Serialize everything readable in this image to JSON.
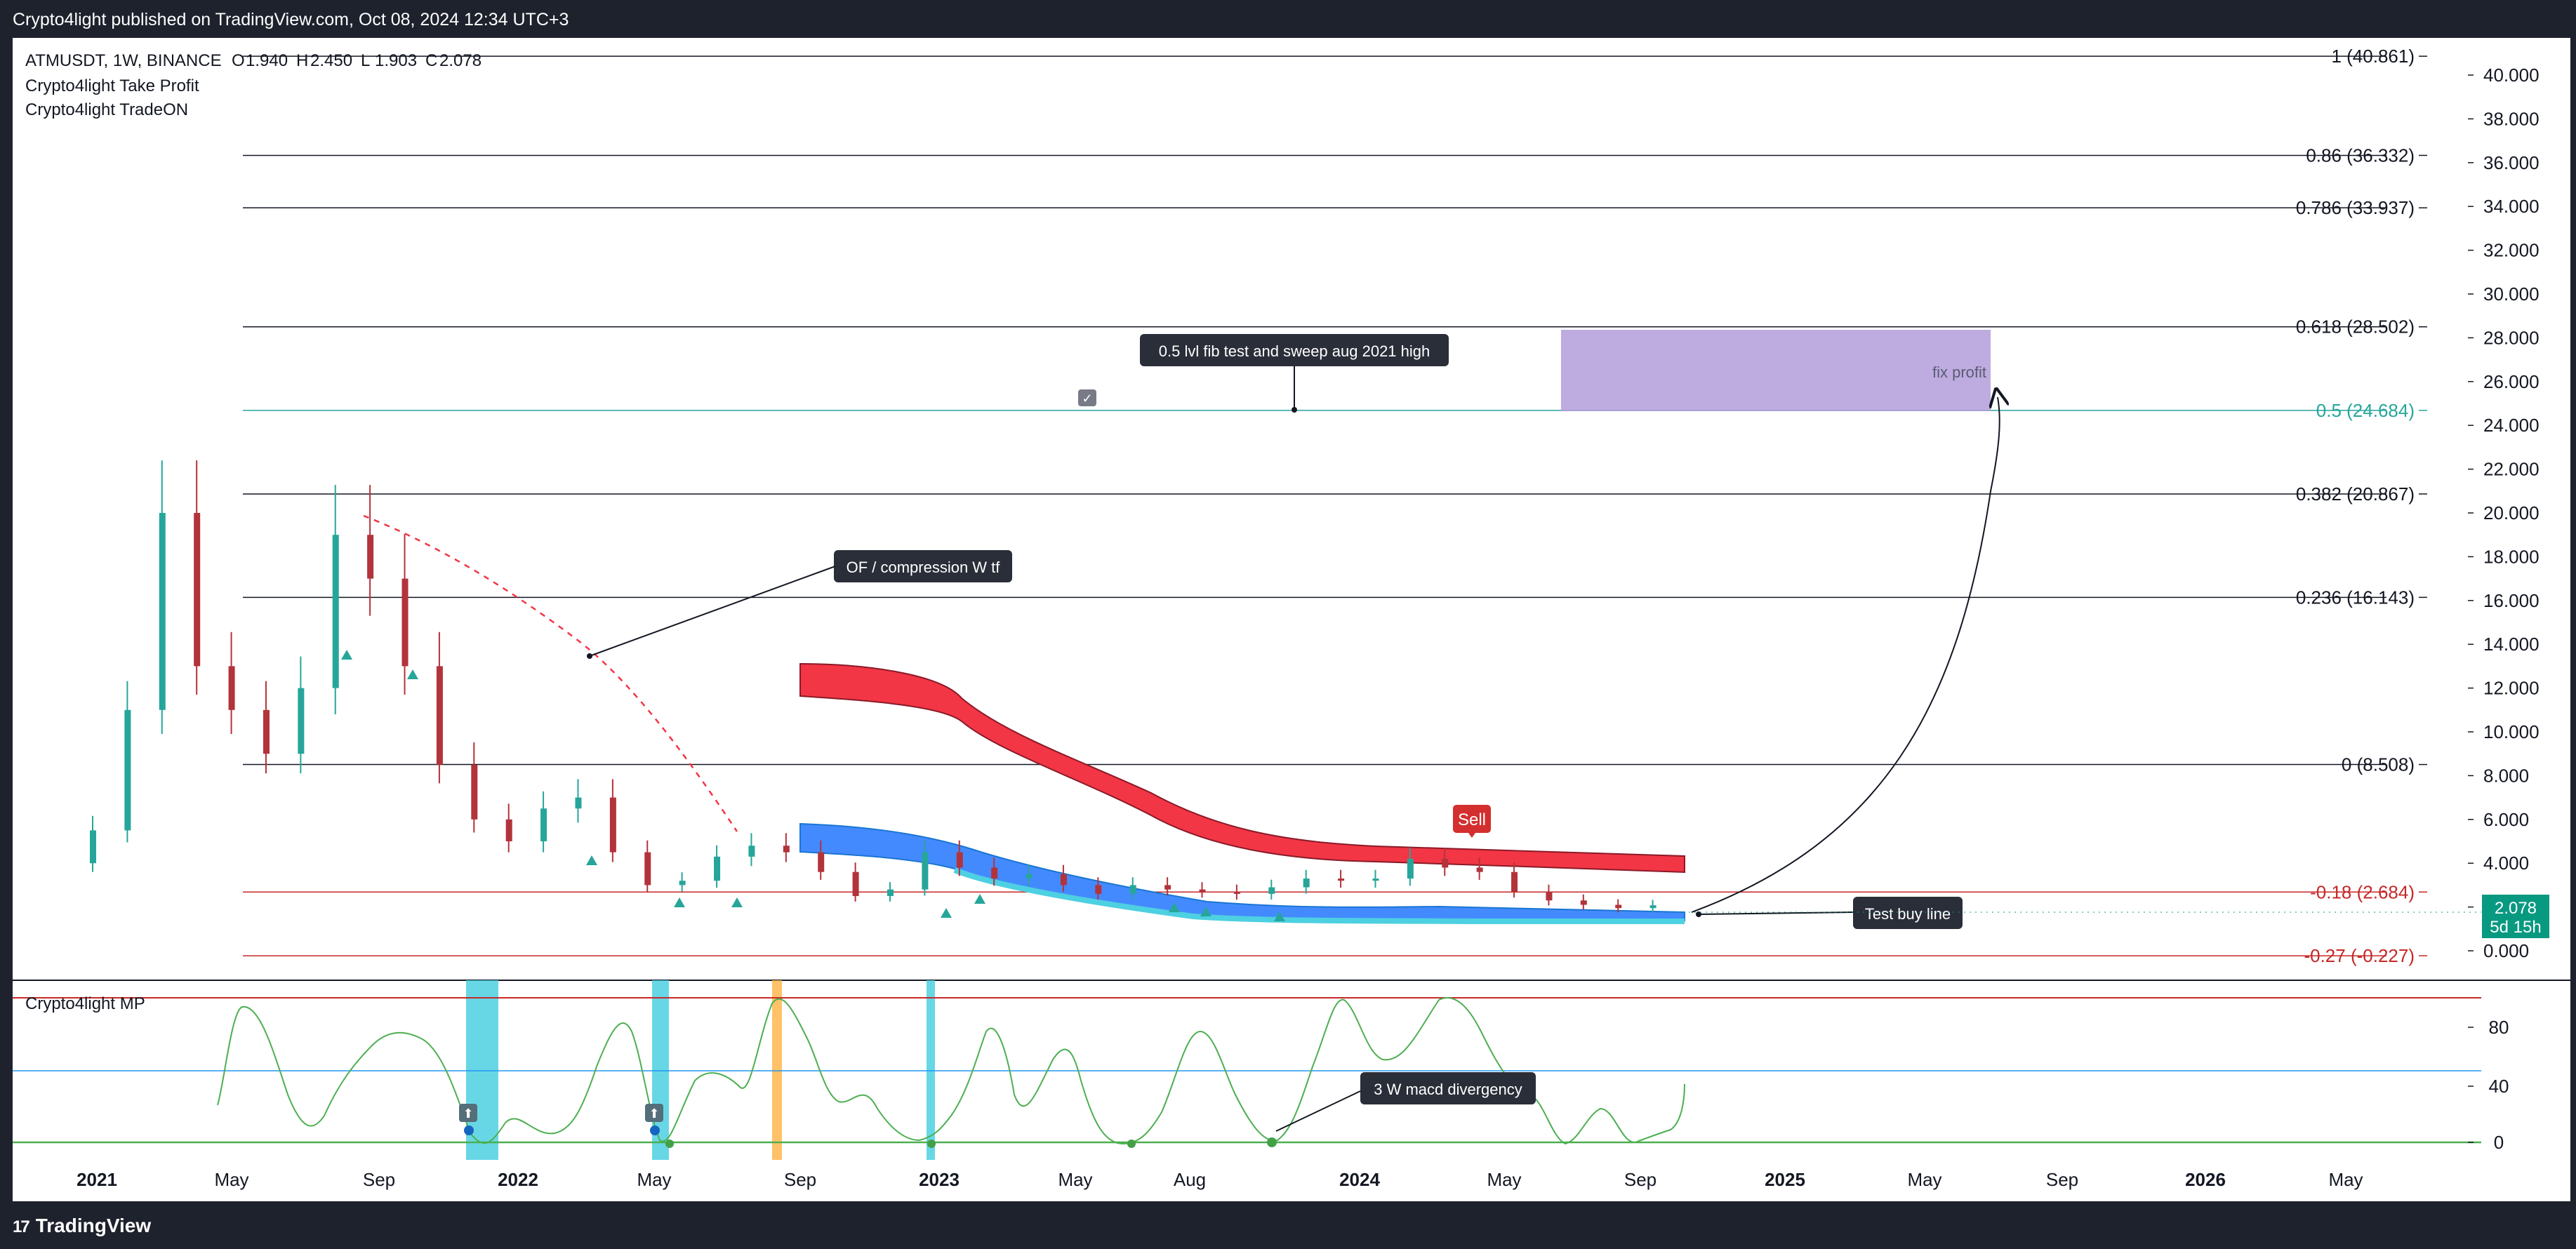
{
  "header": {
    "published": "Crypto4light published on TradingView.com, Oct 08, 2024 12:34 UTC+3"
  },
  "footer": {
    "brand": "TradingView",
    "brand_mark": "17"
  },
  "legend": {
    "symbol": "ATMUSDT, 1W, BINANCE",
    "ohlc": [
      {
        "label": "O",
        "value": "1.940"
      },
      {
        "label": "H",
        "value": "2.450"
      },
      {
        "label": "L",
        "value": "1.903"
      },
      {
        "label": "C",
        "value": "2.078"
      }
    ],
    "indicators": [
      "Crypto4light Take Profit",
      "Crypto4light TradeON"
    ]
  },
  "price_badge": {
    "price": "2.078",
    "countdown": "5d 15h",
    "color": "#089981"
  },
  "colors": {
    "bull": "#26a69a",
    "bear": "#b2333b",
    "fib_black": "#131722",
    "fib_green": "#26a69a",
    "fib_red": "#c62828",
    "sell_band": "#f23645",
    "buy_band": "#2962ff",
    "target_box": "#b39ddb",
    "oscillator": "#4caf50"
  },
  "annotations": {
    "fib_test": "0.5 lvl fib test and sweep aug 2021 high",
    "compression": "OF / compression W tf",
    "test_buy": "Test buy line",
    "fix_profit": "fix profit",
    "sell": "Sell",
    "divergency": "3 W macd divergency"
  },
  "oscillator": {
    "title": "Crypto4light MP",
    "ticks": [
      0,
      40,
      80
    ]
  },
  "chart_data": {
    "type": "candlestick",
    "symbol": "ATMUSDT",
    "timeframe": "1W",
    "exchange": "BINANCE",
    "ylim": [
      0,
      41.0
    ],
    "y_ticks": [
      "0.000",
      "2.000",
      "4.000",
      "6.000",
      "8.000",
      "10.000",
      "12.000",
      "14.000",
      "16.000",
      "18.000",
      "20.000",
      "22.000",
      "24.000",
      "26.000",
      "28.000",
      "30.000",
      "32.000",
      "34.000",
      "36.000",
      "38.000",
      "40.000"
    ],
    "x_ticks": [
      "2021",
      "May",
      "Sep",
      "2022",
      "May",
      "Sep",
      "2023",
      "May",
      "Aug",
      "2024",
      "May",
      "Sep",
      "2025",
      "May",
      "Sep",
      "2026",
      "May"
    ],
    "fib_levels": [
      {
        "label": "1 (40.861)",
        "value": 40.861
      },
      {
        "label": "0.86 (36.332)",
        "value": 36.332
      },
      {
        "label": "0.786 (33.937)",
        "value": 33.937
      },
      {
        "label": "0.618 (28.502)",
        "value": 28.502
      },
      {
        "label": "0.5 (24.684)",
        "value": 24.684
      },
      {
        "label": "0.382 (20.867)",
        "value": 20.867
      },
      {
        "label": "0.236 (16.143)",
        "value": 16.143
      },
      {
        "label": "0 (8.508)",
        "value": 8.508
      },
      {
        "label": "-0.18 (2.684)",
        "value": 2.684
      },
      {
        "label": "-0.27 (-0.227)",
        "value": -0.227
      }
    ],
    "price_series_approx": [
      {
        "date": "2021-01",
        "close": 5.5
      },
      {
        "date": "2021-02",
        "close": 11.0
      },
      {
        "date": "2021-03",
        "close": 20.0
      },
      {
        "date": "2021-04",
        "close": 13.0
      },
      {
        "date": "2021-05",
        "close": 11.0
      },
      {
        "date": "2021-06",
        "close": 9.0
      },
      {
        "date": "2021-07",
        "close": 12.0
      },
      {
        "date": "2021-08",
        "close": 19.0
      },
      {
        "date": "2021-09",
        "close": 17.0
      },
      {
        "date": "2021-10",
        "close": 13.0
      },
      {
        "date": "2021-11",
        "close": 8.5
      },
      {
        "date": "2021-12",
        "close": 6.0
      },
      {
        "date": "2022-01",
        "close": 5.0
      },
      {
        "date": "2022-02",
        "close": 6.5
      },
      {
        "date": "2022-03",
        "close": 7.0
      },
      {
        "date": "2022-04",
        "close": 4.5
      },
      {
        "date": "2022-05",
        "close": 3.0
      },
      {
        "date": "2022-06",
        "close": 3.2
      },
      {
        "date": "2022-07",
        "close": 4.3
      },
      {
        "date": "2022-08",
        "close": 4.8
      },
      {
        "date": "2022-09",
        "close": 4.5
      },
      {
        "date": "2022-10",
        "close": 3.6
      },
      {
        "date": "2022-11",
        "close": 2.5
      },
      {
        "date": "2022-12",
        "close": 2.8
      },
      {
        "date": "2023-01",
        "close": 4.5
      },
      {
        "date": "2023-02",
        "close": 3.8
      },
      {
        "date": "2023-03",
        "close": 3.3
      },
      {
        "date": "2023-04",
        "close": 3.5
      },
      {
        "date": "2023-05",
        "close": 3.0
      },
      {
        "date": "2023-06",
        "close": 2.6
      },
      {
        "date": "2023-07",
        "close": 3.0
      },
      {
        "date": "2023-08",
        "close": 2.8
      },
      {
        "date": "2023-09",
        "close": 2.7
      },
      {
        "date": "2023-10",
        "close": 2.6
      },
      {
        "date": "2023-11",
        "close": 2.9
      },
      {
        "date": "2023-12",
        "close": 3.3
      },
      {
        "date": "2024-01",
        "close": 3.2
      },
      {
        "date": "2024-02",
        "close": 3.3
      },
      {
        "date": "2024-03",
        "close": 4.2
      },
      {
        "date": "2024-04",
        "close": 3.8
      },
      {
        "date": "2024-05",
        "close": 3.6
      },
      {
        "date": "2024-06",
        "close": 2.7
      },
      {
        "date": "2024-07",
        "close": 2.3
      },
      {
        "date": "2024-08",
        "close": 2.1
      },
      {
        "date": "2024-09",
        "close": 1.95
      },
      {
        "date": "2024-10",
        "close": 2.078
      }
    ]
  }
}
